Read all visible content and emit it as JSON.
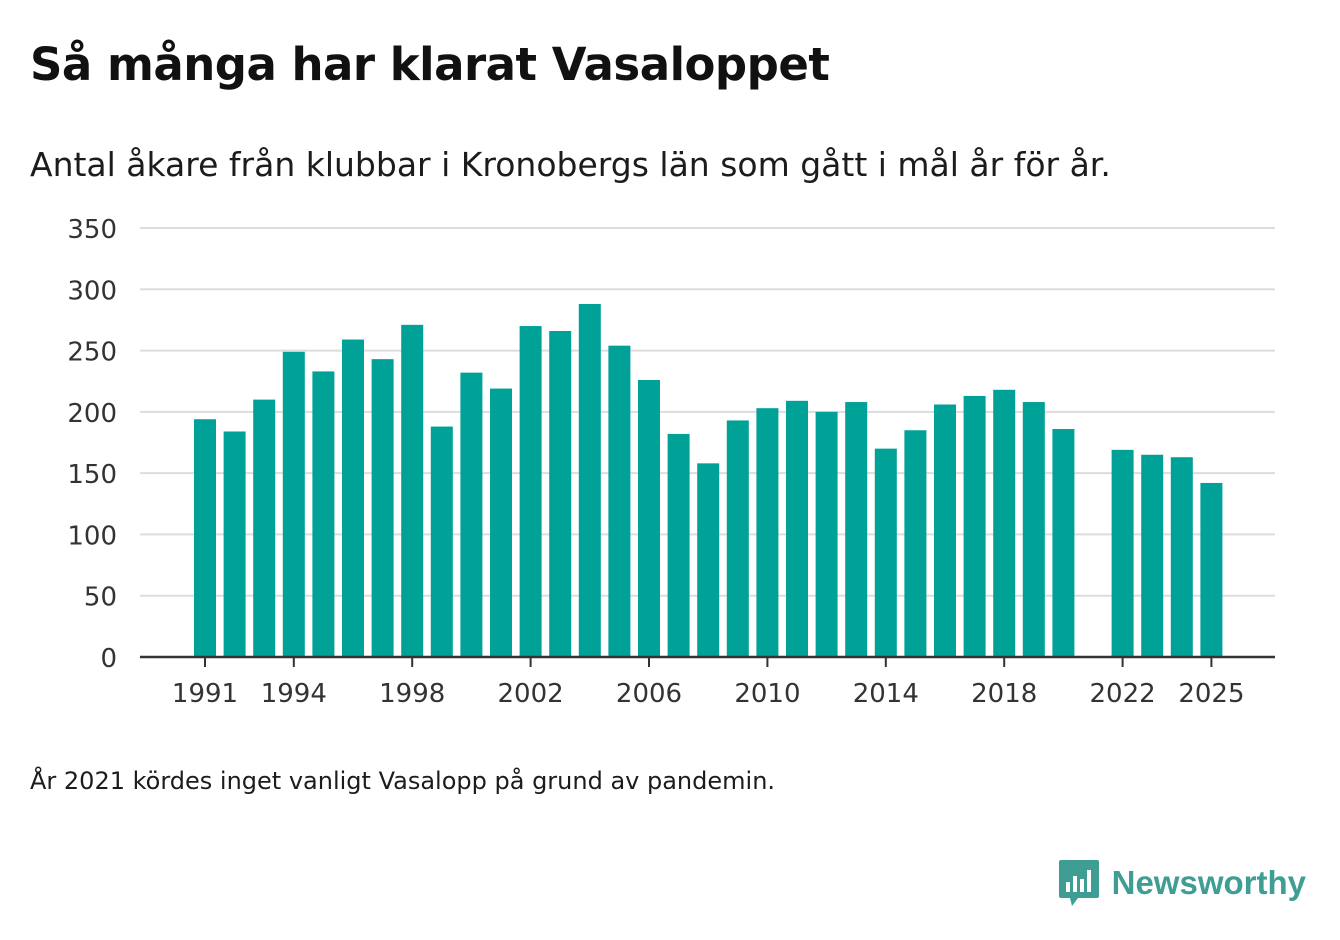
{
  "header": {
    "title": "Så många har klarat Vasaloppet",
    "subtitle": "Antal åkare från klubbar i Kronobergs län som gått i mål år för år."
  },
  "footer": {
    "note": "År 2021 kördes inget vanligt Vasalopp på grund av pandemin.",
    "brand": "Newsworthy"
  },
  "colors": {
    "bar": "#00a298",
    "grid": "#dddddd",
    "axis": "#333333",
    "brand": "#3f9e94"
  },
  "chart_data": {
    "type": "bar",
    "title": "Så många har klarat Vasaloppet",
    "subtitle": "Antal åkare från klubbar i Kronobergs län som gått i mål år för år.",
    "xlabel": "",
    "ylabel": "",
    "ylim": [
      0,
      350
    ],
    "yticks": [
      0,
      50,
      100,
      150,
      200,
      250,
      300,
      350
    ],
    "xticks": [
      1991,
      1994,
      1998,
      2002,
      2006,
      2010,
      2014,
      2018,
      2022,
      2025
    ],
    "grid": true,
    "categories": [
      1991,
      1992,
      1993,
      1994,
      1995,
      1996,
      1997,
      1998,
      1999,
      2000,
      2001,
      2002,
      2003,
      2004,
      2005,
      2006,
      2007,
      2008,
      2009,
      2010,
      2011,
      2012,
      2013,
      2014,
      2015,
      2016,
      2017,
      2018,
      2019,
      2020,
      2021,
      2022,
      2023,
      2024,
      2025
    ],
    "values": [
      194,
      184,
      210,
      249,
      233,
      259,
      243,
      271,
      188,
      232,
      219,
      270,
      266,
      288,
      254,
      226,
      182,
      158,
      193,
      203,
      209,
      200,
      208,
      170,
      185,
      206,
      213,
      218,
      208,
      186,
      null,
      169,
      165,
      163,
      142
    ]
  }
}
